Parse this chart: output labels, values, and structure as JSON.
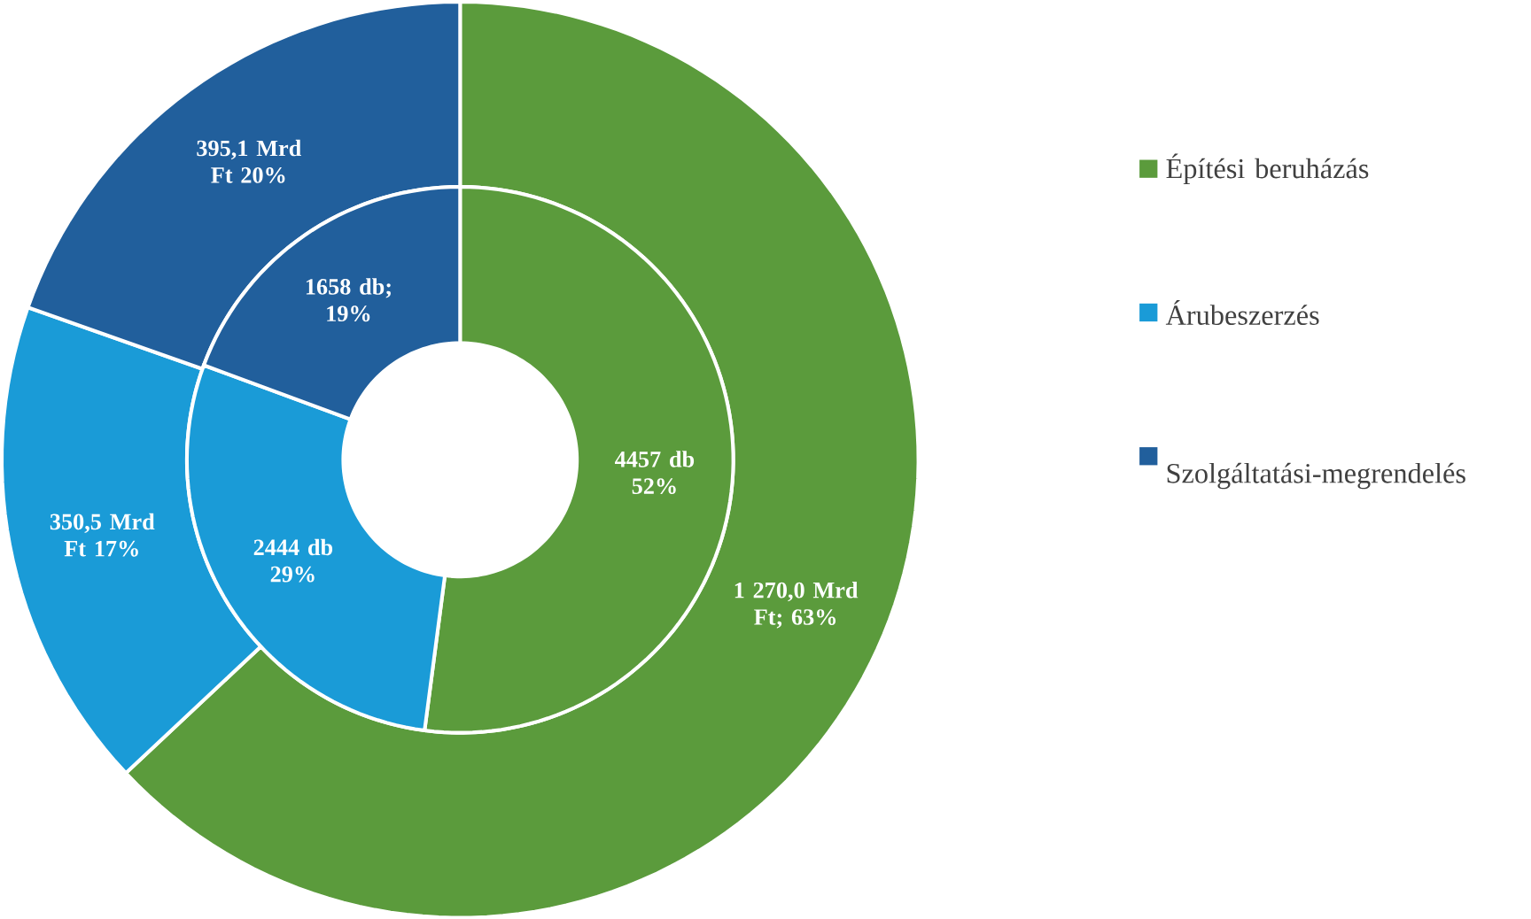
{
  "chart_data": {
    "type": "donut",
    "categories": [
      "Építési beruházás",
      "Árubeszerzés",
      "Szolgáltatási-megrendelés"
    ],
    "series": [
      {
        "values": [
          1270.0,
          350.5,
          395.1
        ],
        "colors": [
          "#5b9b3c",
          "#1a9bd7",
          "#215f9c"
        ],
        "value_labels": [
          "1 270,0 Mrd Ft; 63%",
          "350,5 Mrd Ft 17%",
          "395,1 Mrd Ft 20%"
        ]
      },
      {
        "values": [
          4457,
          2444,
          1658
        ],
        "colors": [
          "#5b9b3c",
          "#1a9bd7",
          "#215f9c"
        ],
        "value_labels": [
          "4457 db 52%",
          "2444 db 29%",
          "1658 db; 19%"
        ]
      }
    ],
    "legend": "right"
  }
}
